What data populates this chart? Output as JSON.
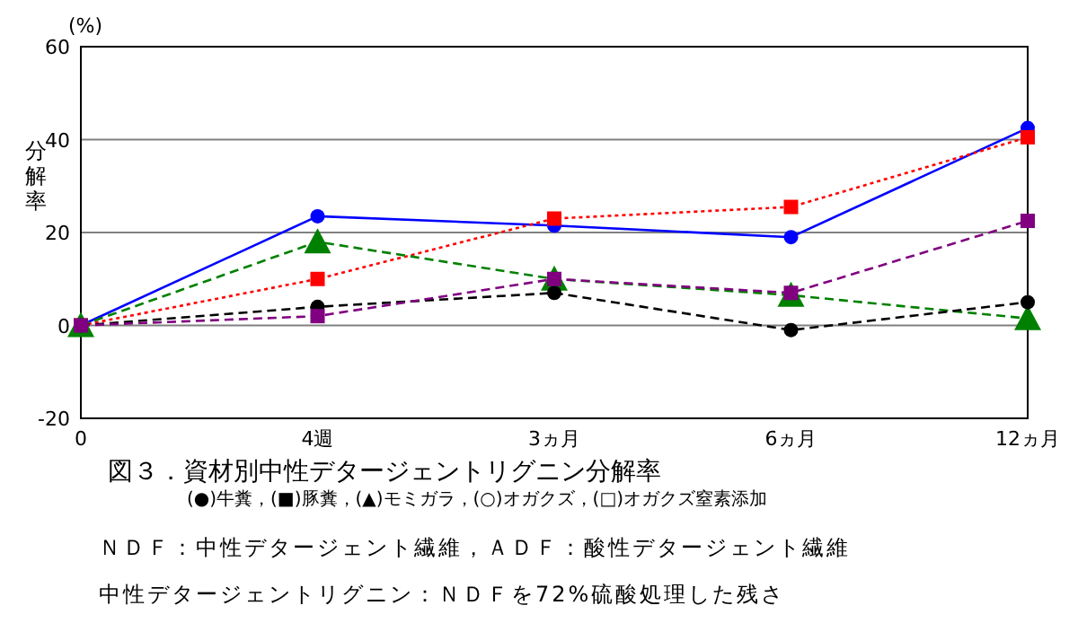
{
  "chart_data": {
    "type": "line",
    "title": "図３．資材別中性デタージェントリグニン分解率",
    "ylabel": "分解率",
    "categories": [
      "0",
      "4週",
      "3ヵ月",
      "6ヵ月",
      "12ヵ月"
    ],
    "ylim": [
      -20,
      60
    ],
    "yticks": [
      -20,
      0,
      20,
      40,
      60
    ],
    "grid": "y",
    "series": [
      {
        "color": "#0000ff",
        "marker": "circle",
        "line_style": "solid",
        "values": [
          0,
          23.5,
          21.5,
          19,
          42.5
        ]
      },
      {
        "color": "#ff0000",
        "marker": "square",
        "line_style": "dotted",
        "values": [
          0,
          10,
          23,
          25.5,
          40.5
        ]
      },
      {
        "color": "#008000",
        "marker": "triangle",
        "line_style": "dashed",
        "values": [
          0,
          18,
          10,
          6.5,
          1.5
        ]
      },
      {
        "color": "#000000",
        "marker": "circle",
        "line_style": "dashed",
        "values": [
          0,
          4,
          7,
          -1,
          5
        ]
      },
      {
        "color": "#800080",
        "marker": "square",
        "line_style": "dashed",
        "values": [
          0,
          2,
          10,
          7,
          22.5
        ]
      }
    ],
    "annotations": [
      "(%)",
      "(●)牛糞，(■)豚糞，(▲)モミガラ，(○)オガクズ，(□)オガクズ窒素添加",
      "ＮＤＦ：中性デタージェント繊維，ＡＤＦ：酸性デタージェント繊維",
      "中性デタージェントリグニン：ＮＤＦを72%硫酸処理した残さ"
    ]
  }
}
